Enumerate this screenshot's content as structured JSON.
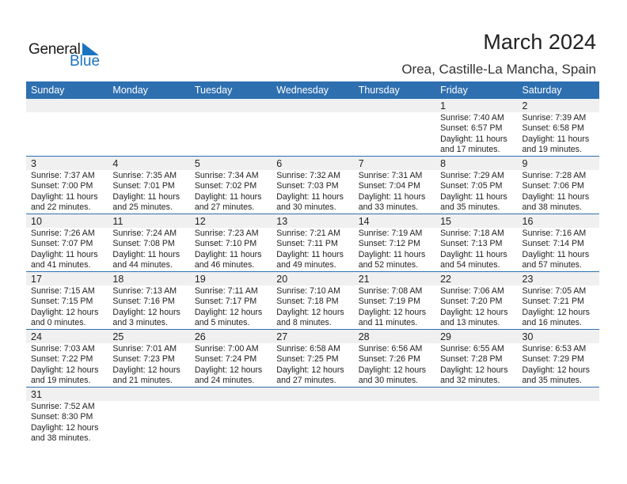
{
  "logo": {
    "line1": "General",
    "line2": "Blue"
  },
  "header": {
    "title": "March 2024",
    "location": "Orea, Castille-La Mancha, Spain"
  },
  "colors": {
    "accent": "#2e6fb0",
    "band": "#f0f0f0"
  },
  "weekdays": [
    "Sunday",
    "Monday",
    "Tuesday",
    "Wednesday",
    "Thursday",
    "Friday",
    "Saturday"
  ],
  "weeks": [
    [
      null,
      null,
      null,
      null,
      null,
      {
        "day": "1",
        "sunrise": "Sunrise: 7:40 AM",
        "sunset": "Sunset: 6:57 PM",
        "daylight1": "Daylight: 11 hours",
        "daylight2": "and 17 minutes."
      },
      {
        "day": "2",
        "sunrise": "Sunrise: 7:39 AM",
        "sunset": "Sunset: 6:58 PM",
        "daylight1": "Daylight: 11 hours",
        "daylight2": "and 19 minutes."
      }
    ],
    [
      {
        "day": "3",
        "sunrise": "Sunrise: 7:37 AM",
        "sunset": "Sunset: 7:00 PM",
        "daylight1": "Daylight: 11 hours",
        "daylight2": "and 22 minutes."
      },
      {
        "day": "4",
        "sunrise": "Sunrise: 7:35 AM",
        "sunset": "Sunset: 7:01 PM",
        "daylight1": "Daylight: 11 hours",
        "daylight2": "and 25 minutes."
      },
      {
        "day": "5",
        "sunrise": "Sunrise: 7:34 AM",
        "sunset": "Sunset: 7:02 PM",
        "daylight1": "Daylight: 11 hours",
        "daylight2": "and 27 minutes."
      },
      {
        "day": "6",
        "sunrise": "Sunrise: 7:32 AM",
        "sunset": "Sunset: 7:03 PM",
        "daylight1": "Daylight: 11 hours",
        "daylight2": "and 30 minutes."
      },
      {
        "day": "7",
        "sunrise": "Sunrise: 7:31 AM",
        "sunset": "Sunset: 7:04 PM",
        "daylight1": "Daylight: 11 hours",
        "daylight2": "and 33 minutes."
      },
      {
        "day": "8",
        "sunrise": "Sunrise: 7:29 AM",
        "sunset": "Sunset: 7:05 PM",
        "daylight1": "Daylight: 11 hours",
        "daylight2": "and 35 minutes."
      },
      {
        "day": "9",
        "sunrise": "Sunrise: 7:28 AM",
        "sunset": "Sunset: 7:06 PM",
        "daylight1": "Daylight: 11 hours",
        "daylight2": "and 38 minutes."
      }
    ],
    [
      {
        "day": "10",
        "sunrise": "Sunrise: 7:26 AM",
        "sunset": "Sunset: 7:07 PM",
        "daylight1": "Daylight: 11 hours",
        "daylight2": "and 41 minutes."
      },
      {
        "day": "11",
        "sunrise": "Sunrise: 7:24 AM",
        "sunset": "Sunset: 7:08 PM",
        "daylight1": "Daylight: 11 hours",
        "daylight2": "and 44 minutes."
      },
      {
        "day": "12",
        "sunrise": "Sunrise: 7:23 AM",
        "sunset": "Sunset: 7:10 PM",
        "daylight1": "Daylight: 11 hours",
        "daylight2": "and 46 minutes."
      },
      {
        "day": "13",
        "sunrise": "Sunrise: 7:21 AM",
        "sunset": "Sunset: 7:11 PM",
        "daylight1": "Daylight: 11 hours",
        "daylight2": "and 49 minutes."
      },
      {
        "day": "14",
        "sunrise": "Sunrise: 7:19 AM",
        "sunset": "Sunset: 7:12 PM",
        "daylight1": "Daylight: 11 hours",
        "daylight2": "and 52 minutes."
      },
      {
        "day": "15",
        "sunrise": "Sunrise: 7:18 AM",
        "sunset": "Sunset: 7:13 PM",
        "daylight1": "Daylight: 11 hours",
        "daylight2": "and 54 minutes."
      },
      {
        "day": "16",
        "sunrise": "Sunrise: 7:16 AM",
        "sunset": "Sunset: 7:14 PM",
        "daylight1": "Daylight: 11 hours",
        "daylight2": "and 57 minutes."
      }
    ],
    [
      {
        "day": "17",
        "sunrise": "Sunrise: 7:15 AM",
        "sunset": "Sunset: 7:15 PM",
        "daylight1": "Daylight: 12 hours",
        "daylight2": "and 0 minutes."
      },
      {
        "day": "18",
        "sunrise": "Sunrise: 7:13 AM",
        "sunset": "Sunset: 7:16 PM",
        "daylight1": "Daylight: 12 hours",
        "daylight2": "and 3 minutes."
      },
      {
        "day": "19",
        "sunrise": "Sunrise: 7:11 AM",
        "sunset": "Sunset: 7:17 PM",
        "daylight1": "Daylight: 12 hours",
        "daylight2": "and 5 minutes."
      },
      {
        "day": "20",
        "sunrise": "Sunrise: 7:10 AM",
        "sunset": "Sunset: 7:18 PM",
        "daylight1": "Daylight: 12 hours",
        "daylight2": "and 8 minutes."
      },
      {
        "day": "21",
        "sunrise": "Sunrise: 7:08 AM",
        "sunset": "Sunset: 7:19 PM",
        "daylight1": "Daylight: 12 hours",
        "daylight2": "and 11 minutes."
      },
      {
        "day": "22",
        "sunrise": "Sunrise: 7:06 AM",
        "sunset": "Sunset: 7:20 PM",
        "daylight1": "Daylight: 12 hours",
        "daylight2": "and 13 minutes."
      },
      {
        "day": "23",
        "sunrise": "Sunrise: 7:05 AM",
        "sunset": "Sunset: 7:21 PM",
        "daylight1": "Daylight: 12 hours",
        "daylight2": "and 16 minutes."
      }
    ],
    [
      {
        "day": "24",
        "sunrise": "Sunrise: 7:03 AM",
        "sunset": "Sunset: 7:22 PM",
        "daylight1": "Daylight: 12 hours",
        "daylight2": "and 19 minutes."
      },
      {
        "day": "25",
        "sunrise": "Sunrise: 7:01 AM",
        "sunset": "Sunset: 7:23 PM",
        "daylight1": "Daylight: 12 hours",
        "daylight2": "and 21 minutes."
      },
      {
        "day": "26",
        "sunrise": "Sunrise: 7:00 AM",
        "sunset": "Sunset: 7:24 PM",
        "daylight1": "Daylight: 12 hours",
        "daylight2": "and 24 minutes."
      },
      {
        "day": "27",
        "sunrise": "Sunrise: 6:58 AM",
        "sunset": "Sunset: 7:25 PM",
        "daylight1": "Daylight: 12 hours",
        "daylight2": "and 27 minutes."
      },
      {
        "day": "28",
        "sunrise": "Sunrise: 6:56 AM",
        "sunset": "Sunset: 7:26 PM",
        "daylight1": "Daylight: 12 hours",
        "daylight2": "and 30 minutes."
      },
      {
        "day": "29",
        "sunrise": "Sunrise: 6:55 AM",
        "sunset": "Sunset: 7:28 PM",
        "daylight1": "Daylight: 12 hours",
        "daylight2": "and 32 minutes."
      },
      {
        "day": "30",
        "sunrise": "Sunrise: 6:53 AM",
        "sunset": "Sunset: 7:29 PM",
        "daylight1": "Daylight: 12 hours",
        "daylight2": "and 35 minutes."
      }
    ],
    [
      {
        "day": "31",
        "sunrise": "Sunrise: 7:52 AM",
        "sunset": "Sunset: 8:30 PM",
        "daylight1": "Daylight: 12 hours",
        "daylight2": "and 38 minutes."
      },
      null,
      null,
      null,
      null,
      null,
      null
    ]
  ]
}
